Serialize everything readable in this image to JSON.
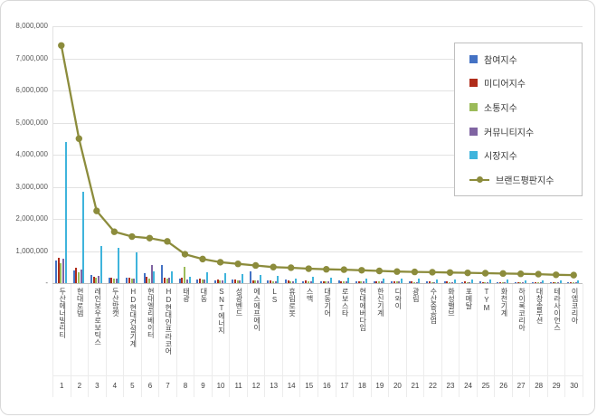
{
  "chart_data": {
    "type": "bar+line",
    "title": "",
    "grid": true,
    "legend": {
      "position": "top-right",
      "entries": [
        "참여지수",
        "미디어지수",
        "소통지수",
        "커뮤니티지수",
        "시장지수",
        "브랜드평판지수"
      ]
    },
    "y_axis": {
      "min": 0,
      "max": 8000000,
      "tick_interval": 1000000,
      "tick_labels": [
        "8,000,000",
        "7,000,000",
        "6,000,000",
        "5,000,000",
        "4,000,000",
        "3,000,000",
        "2,000,000",
        "1,000,000",
        "-"
      ]
    },
    "categories": [
      "두산에너빌리티",
      "현대로템",
      "레인보우로보틱스",
      "두산밥캣",
      "HD현대건설기계",
      "현대엘리베이터",
      "HD현대인프라코어",
      "태광",
      "대동",
      "SNT에너지",
      "성광벤드",
      "에스에프에이",
      "LS",
      "휴림로봇",
      "스맥",
      "대동기어",
      "로보스타",
      "현대에버다임",
      "한신기계",
      "디와이",
      "광림",
      "수산중공업",
      "화성밸브",
      "포메탈",
      "TYM",
      "화천기계",
      "하이록코리아",
      "대창솔루션",
      "테라사이언스",
      "이엠코리아"
    ],
    "rank_labels": [
      "1",
      "2",
      "3",
      "4",
      "5",
      "6",
      "7",
      "8",
      "9",
      "10",
      "11",
      "12",
      "13",
      "14",
      "15",
      "16",
      "17",
      "18",
      "19",
      "20",
      "21",
      "22",
      "23",
      "24",
      "25",
      "26",
      "27",
      "28",
      "29",
      "30"
    ],
    "series": [
      {
        "name": "참여지수",
        "type": "bar",
        "color": "#4472C4",
        "values": [
          700000,
          400000,
          250000,
          160000,
          180000,
          300000,
          560000,
          130000,
          110000,
          90000,
          100000,
          380000,
          90000,
          120000,
          70000,
          60000,
          80000,
          70000,
          60000,
          50000,
          60000,
          50000,
          50000,
          40000,
          50000,
          40000,
          40000,
          40000,
          30000,
          30000
        ]
      },
      {
        "name": "미디어지수",
        "type": "bar",
        "color": "#B02C1A",
        "values": [
          780000,
          480000,
          210000,
          170000,
          160000,
          200000,
          180000,
          160000,
          140000,
          110000,
          100000,
          90000,
          80000,
          80000,
          80000,
          70000,
          70000,
          70000,
          60000,
          60000,
          50000,
          50000,
          50000,
          50000,
          40000,
          40000,
          40000,
          40000,
          40000,
          30000
        ]
      },
      {
        "name": "소통지수",
        "type": "bar",
        "color": "#9BBB59",
        "values": [
          620000,
          350000,
          180000,
          140000,
          130000,
          150000,
          140000,
          520000,
          120000,
          90000,
          80000,
          80000,
          70000,
          70000,
          60000,
          60000,
          60000,
          50000,
          50000,
          50000,
          40000,
          40000,
          40000,
          40000,
          40000,
          30000,
          30000,
          30000,
          30000,
          30000
        ]
      },
      {
        "name": "커뮤니티지수",
        "type": "bar",
        "color": "#8064A2",
        "values": [
          750000,
          420000,
          230000,
          150000,
          140000,
          550000,
          160000,
          120000,
          100000,
          90000,
          90000,
          80000,
          70000,
          70000,
          60000,
          60000,
          60000,
          50000,
          50000,
          50000,
          40000,
          40000,
          40000,
          40000,
          40000,
          30000,
          30000,
          30000,
          30000,
          30000
        ]
      },
      {
        "name": "시장지수",
        "type": "bar",
        "color": "#3FB4DC",
        "values": [
          4400000,
          2850000,
          1150000,
          1100000,
          950000,
          380000,
          360000,
          200000,
          350000,
          300000,
          280000,
          250000,
          220000,
          150000,
          200000,
          180000,
          160000,
          150000,
          140000,
          130000,
          130000,
          120000,
          110000,
          110000,
          100000,
          100000,
          90000,
          90000,
          80000,
          80000
        ]
      },
      {
        "name": "브랜드평판지수",
        "type": "line",
        "color": "#8C8C3C",
        "values": [
          7400000,
          4500000,
          2250000,
          1600000,
          1450000,
          1400000,
          1300000,
          900000,
          750000,
          650000,
          600000,
          550000,
          500000,
          480000,
          450000,
          430000,
          420000,
          400000,
          380000,
          360000,
          350000,
          340000,
          330000,
          320000,
          310000,
          300000,
          290000,
          280000,
          260000,
          250000
        ]
      }
    ]
  }
}
